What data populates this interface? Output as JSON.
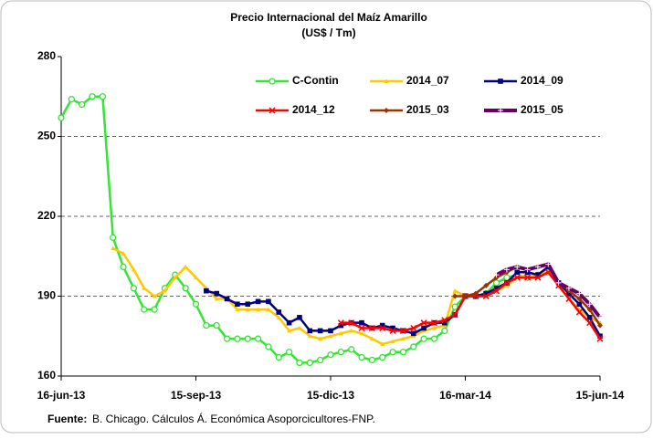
{
  "chart_data": {
    "type": "line",
    "title": "Precio Internacional del Maíz Amarillo",
    "subtitle": "(US$ / Tm)",
    "source_label": "Fuente:",
    "source": "B. Chicago. Cálculos Á. Económica Asoporcicultores-FNP.",
    "categories": [
      "16-jun-13",
      null,
      null,
      null,
      null,
      null,
      null,
      null,
      null,
      null,
      null,
      null,
      null,
      "15-sep-13",
      null,
      null,
      null,
      null,
      null,
      null,
      null,
      null,
      null,
      null,
      null,
      null,
      "15-dic-13",
      null,
      null,
      null,
      null,
      null,
      null,
      null,
      null,
      null,
      null,
      null,
      null,
      "16-mar-14",
      null,
      null,
      null,
      null,
      null,
      null,
      null,
      null,
      null,
      null,
      null,
      null,
      "15-jun-14"
    ],
    "ylim": [
      160,
      280
    ],
    "yticks": [
      160,
      190,
      220,
      250,
      280
    ],
    "grid": true,
    "series": [
      {
        "name": "C-Contin",
        "color": "#33e633",
        "marker": "circle",
        "values": [
          257,
          264,
          262,
          265,
          265,
          212,
          201,
          193,
          185,
          185,
          193,
          198,
          193,
          187,
          179,
          179,
          174,
          174,
          174,
          174,
          171,
          167,
          169,
          165,
          165,
          166,
          168,
          169,
          170,
          167,
          166,
          167,
          169,
          169,
          171,
          174,
          174,
          177,
          186,
          190,
          190,
          191,
          195,
          197,
          198,
          197,
          198,
          199,
          null,
          null,
          null,
          null,
          null
        ]
      },
      {
        "name": "2014_07",
        "color": "#ffc800",
        "marker": "triangle",
        "values": [
          null,
          null,
          null,
          null,
          null,
          208,
          206,
          200,
          193,
          190,
          192,
          197,
          201,
          197,
          193,
          189,
          189,
          185,
          185,
          185,
          185,
          182,
          177,
          178,
          175,
          174,
          175,
          176,
          177,
          176,
          174,
          172,
          173,
          174,
          175,
          177,
          178,
          179,
          192,
          190,
          190,
          190,
          192,
          194,
          197,
          198,
          197,
          200,
          194,
          189,
          185,
          182,
          180
        ]
      },
      {
        "name": "2014_09",
        "color": "#000080",
        "marker": "square",
        "values": [
          null,
          null,
          null,
          null,
          null,
          null,
          null,
          null,
          null,
          null,
          null,
          null,
          null,
          null,
          192,
          191,
          189,
          187,
          187,
          188,
          188,
          184,
          180,
          182,
          177,
          177,
          177,
          179,
          180,
          180,
          178,
          179,
          178,
          177,
          176,
          178,
          180,
          180,
          183,
          190,
          190,
          191,
          193,
          195,
          199,
          199,
          198,
          201,
          195,
          191,
          187,
          182,
          175
        ]
      },
      {
        "name": "2014_12",
        "color": "#ff0000",
        "marker": "x",
        "values": [
          null,
          null,
          null,
          null,
          null,
          null,
          null,
          null,
          null,
          null,
          null,
          null,
          null,
          null,
          null,
          null,
          null,
          null,
          null,
          null,
          null,
          null,
          null,
          null,
          null,
          null,
          null,
          180,
          180,
          178,
          178,
          178,
          177,
          177,
          178,
          180,
          180,
          181,
          183,
          190,
          190,
          190,
          192,
          195,
          197,
          197,
          197,
          199,
          194,
          189,
          184,
          180,
          174
        ]
      },
      {
        "name": "2015_03",
        "color": "#993300",
        "marker": "diamond",
        "values": [
          null,
          null,
          null,
          null,
          null,
          null,
          null,
          null,
          null,
          null,
          null,
          null,
          null,
          null,
          null,
          null,
          null,
          null,
          null,
          null,
          null,
          null,
          null,
          null,
          null,
          null,
          null,
          null,
          null,
          null,
          null,
          null,
          null,
          null,
          null,
          null,
          null,
          null,
          190,
          190,
          191,
          194,
          197,
          199,
          201,
          200,
          201,
          202,
          195,
          192,
          189,
          185,
          179
        ]
      },
      {
        "name": "2015_05",
        "color": "#660066",
        "marker": "plus",
        "values": [
          null,
          null,
          null,
          null,
          null,
          null,
          null,
          null,
          null,
          null,
          null,
          null,
          null,
          null,
          null,
          null,
          null,
          null,
          null,
          null,
          null,
          null,
          null,
          null,
          null,
          null,
          null,
          null,
          null,
          null,
          null,
          null,
          null,
          null,
          null,
          null,
          null,
          null,
          null,
          null,
          null,
          null,
          198,
          200,
          201,
          200,
          201,
          202,
          195,
          193,
          191,
          187,
          182
        ]
      }
    ]
  }
}
